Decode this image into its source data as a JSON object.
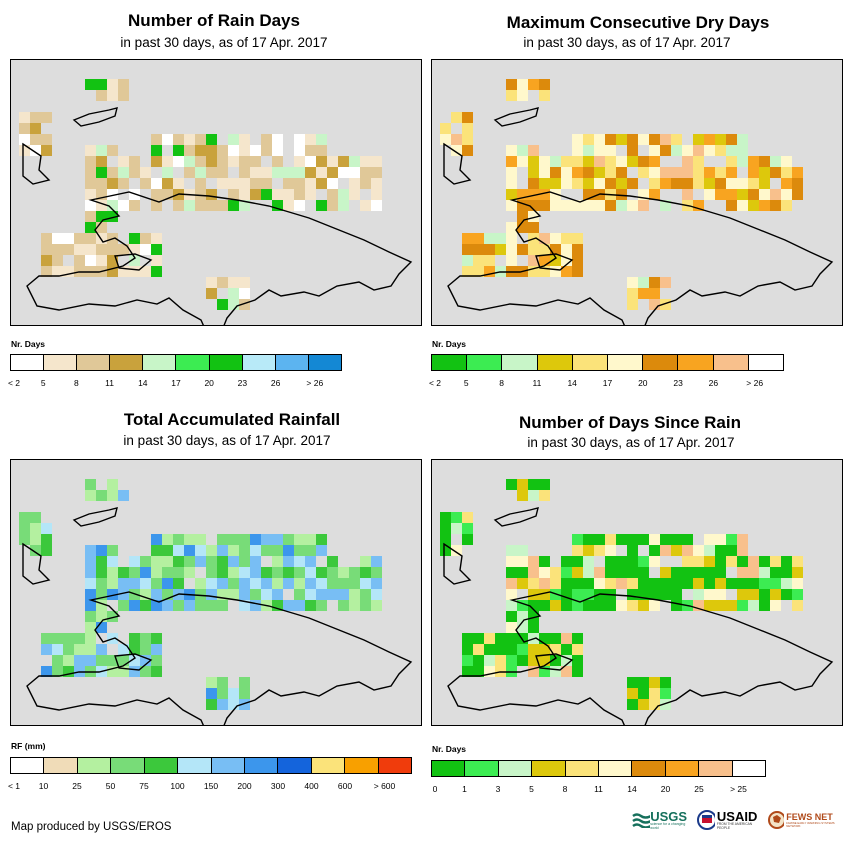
{
  "panels": [
    {
      "title": "Number of Rain Days",
      "subtitle": "in past 30 days, as of 17 Apr. 2017",
      "legend_title": "Nr. Days",
      "legend_colors": [
        "#ffffff",
        "#f5e6cc",
        "#e0c898",
        "#c9a23c",
        "#c8f5c8",
        "#3cec52",
        "#12c212",
        "#b8eaf8",
        "#5cb4f0",
        "#1488d4"
      ],
      "legend_labels": [
        "< 2",
        "5",
        "8",
        "11",
        "14",
        "17",
        "20",
        "23",
        "26",
        "> 26"
      ]
    },
    {
      "title": "Maximum Consecutive Dry Days",
      "subtitle": "in past 30 days, as of 17 Apr. 2017",
      "legend_title": "Nr. Days",
      "legend_colors": [
        "#12c212",
        "#3cec52",
        "#c8f5c8",
        "#ddc80c",
        "#fbe37a",
        "#fff8cc",
        "#dc8a0c",
        "#f8a420",
        "#f8c08c",
        "#ffffff"
      ],
      "legend_labels": [
        "< 2",
        "5",
        "8",
        "11",
        "14",
        "17",
        "20",
        "23",
        "26",
        "> 26"
      ]
    },
    {
      "title": "Total Accumulated Rainfall",
      "subtitle": "in past 30 days, as of 17 Apr. 2017",
      "legend_title": "RF (mm)",
      "legend_colors": [
        "#ffffff",
        "#f0dcb8",
        "#b4f0a0",
        "#78dc78",
        "#3cc83c",
        "#b4e6f8",
        "#78bef4",
        "#3c96ec",
        "#1464dc",
        "#fbe37a",
        "#f8a000",
        "#f03c0c"
      ],
      "legend_labels": [
        "< 1",
        "10",
        "25",
        "50",
        "75",
        "100",
        "150",
        "200",
        "300",
        "400",
        "600",
        "> 600"
      ]
    },
    {
      "title": "Number of Days Since Rain",
      "subtitle": "in past 30 days, as of 17 Apr. 2017",
      "legend_title": "Nr. Days",
      "legend_colors": [
        "#12c212",
        "#3cec52",
        "#c8f5c8",
        "#ddc80c",
        "#fbe37a",
        "#fff8cc",
        "#dc8a0c",
        "#f8a420",
        "#f8c08c",
        "#ffffff"
      ],
      "legend_labels": [
        "0",
        "1",
        "3",
        "5",
        "8",
        "11",
        "14",
        "20",
        "25",
        "> 25"
      ]
    }
  ],
  "footer": "Map produced by USGS/EROS",
  "logos": {
    "usgs": "USGS",
    "usgs_tagline": "science for a changing world",
    "usaid": "USAID",
    "usaid_tagline": "FROM THE AMERICAN PEOPLE",
    "fews": "FEWS NET",
    "fews_tagline": "FAMINE EARLY WARNING SYSTEMS NETWORK"
  }
}
